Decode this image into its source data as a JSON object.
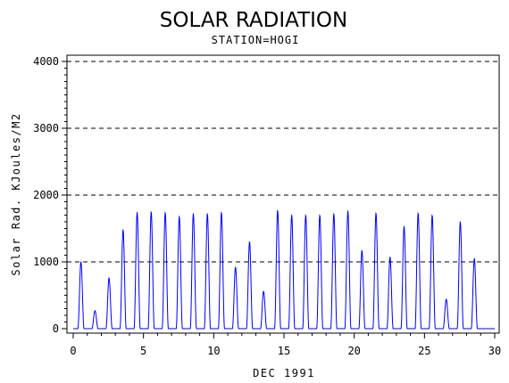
{
  "chart_data": {
    "type": "line",
    "title": "SOLAR RADIATION",
    "subtitle": "STATION=HOGI",
    "xlabel": "DEC 1991",
    "ylabel": "Solar Rad. KJoules/M2",
    "xlim": [
      0,
      30
    ],
    "ylim": [
      0,
      4000
    ],
    "x_ticks": [
      "0",
      "5",
      "10",
      "15",
      "20",
      "25",
      "30"
    ],
    "y_ticks": [
      "0",
      "1000",
      "2000",
      "3000",
      "4000"
    ],
    "grid": "dashed horizontal at y ticks",
    "series": [
      {
        "color": "#0000ff",
        "daily_peaks": [
          {
            "day": 1,
            "peak": 1000
          },
          {
            "day": 2,
            "peak": 270
          },
          {
            "day": 3,
            "peak": 760
          },
          {
            "day": 4,
            "peak": 1480
          },
          {
            "day": 5,
            "peak": 1740
          },
          {
            "day": 6,
            "peak": 1750
          },
          {
            "day": 7,
            "peak": 1740
          },
          {
            "day": 8,
            "peak": 1680
          },
          {
            "day": 9,
            "peak": 1720
          },
          {
            "day": 10,
            "peak": 1720
          },
          {
            "day": 11,
            "peak": 1740
          },
          {
            "day": 12,
            "peak": 920
          },
          {
            "day": 13,
            "peak": 1300
          },
          {
            "day": 14,
            "peak": 560
          },
          {
            "day": 15,
            "peak": 1770
          },
          {
            "day": 16,
            "peak": 1700
          },
          {
            "day": 17,
            "peak": 1700
          },
          {
            "day": 18,
            "peak": 1700
          },
          {
            "day": 19,
            "peak": 1720
          },
          {
            "day": 20,
            "peak": 1760
          },
          {
            "day": 21,
            "peak": 1170
          },
          {
            "day": 22,
            "peak": 1730
          },
          {
            "day": 23,
            "peak": 1070
          },
          {
            "day": 24,
            "peak": 1530
          },
          {
            "day": 25,
            "peak": 1730
          },
          {
            "day": 26,
            "peak": 1700
          },
          {
            "day": 27,
            "peak": 440
          },
          {
            "day": 28,
            "peak": 1600
          },
          {
            "day": 29,
            "peak": 1050
          }
        ]
      }
    ]
  }
}
